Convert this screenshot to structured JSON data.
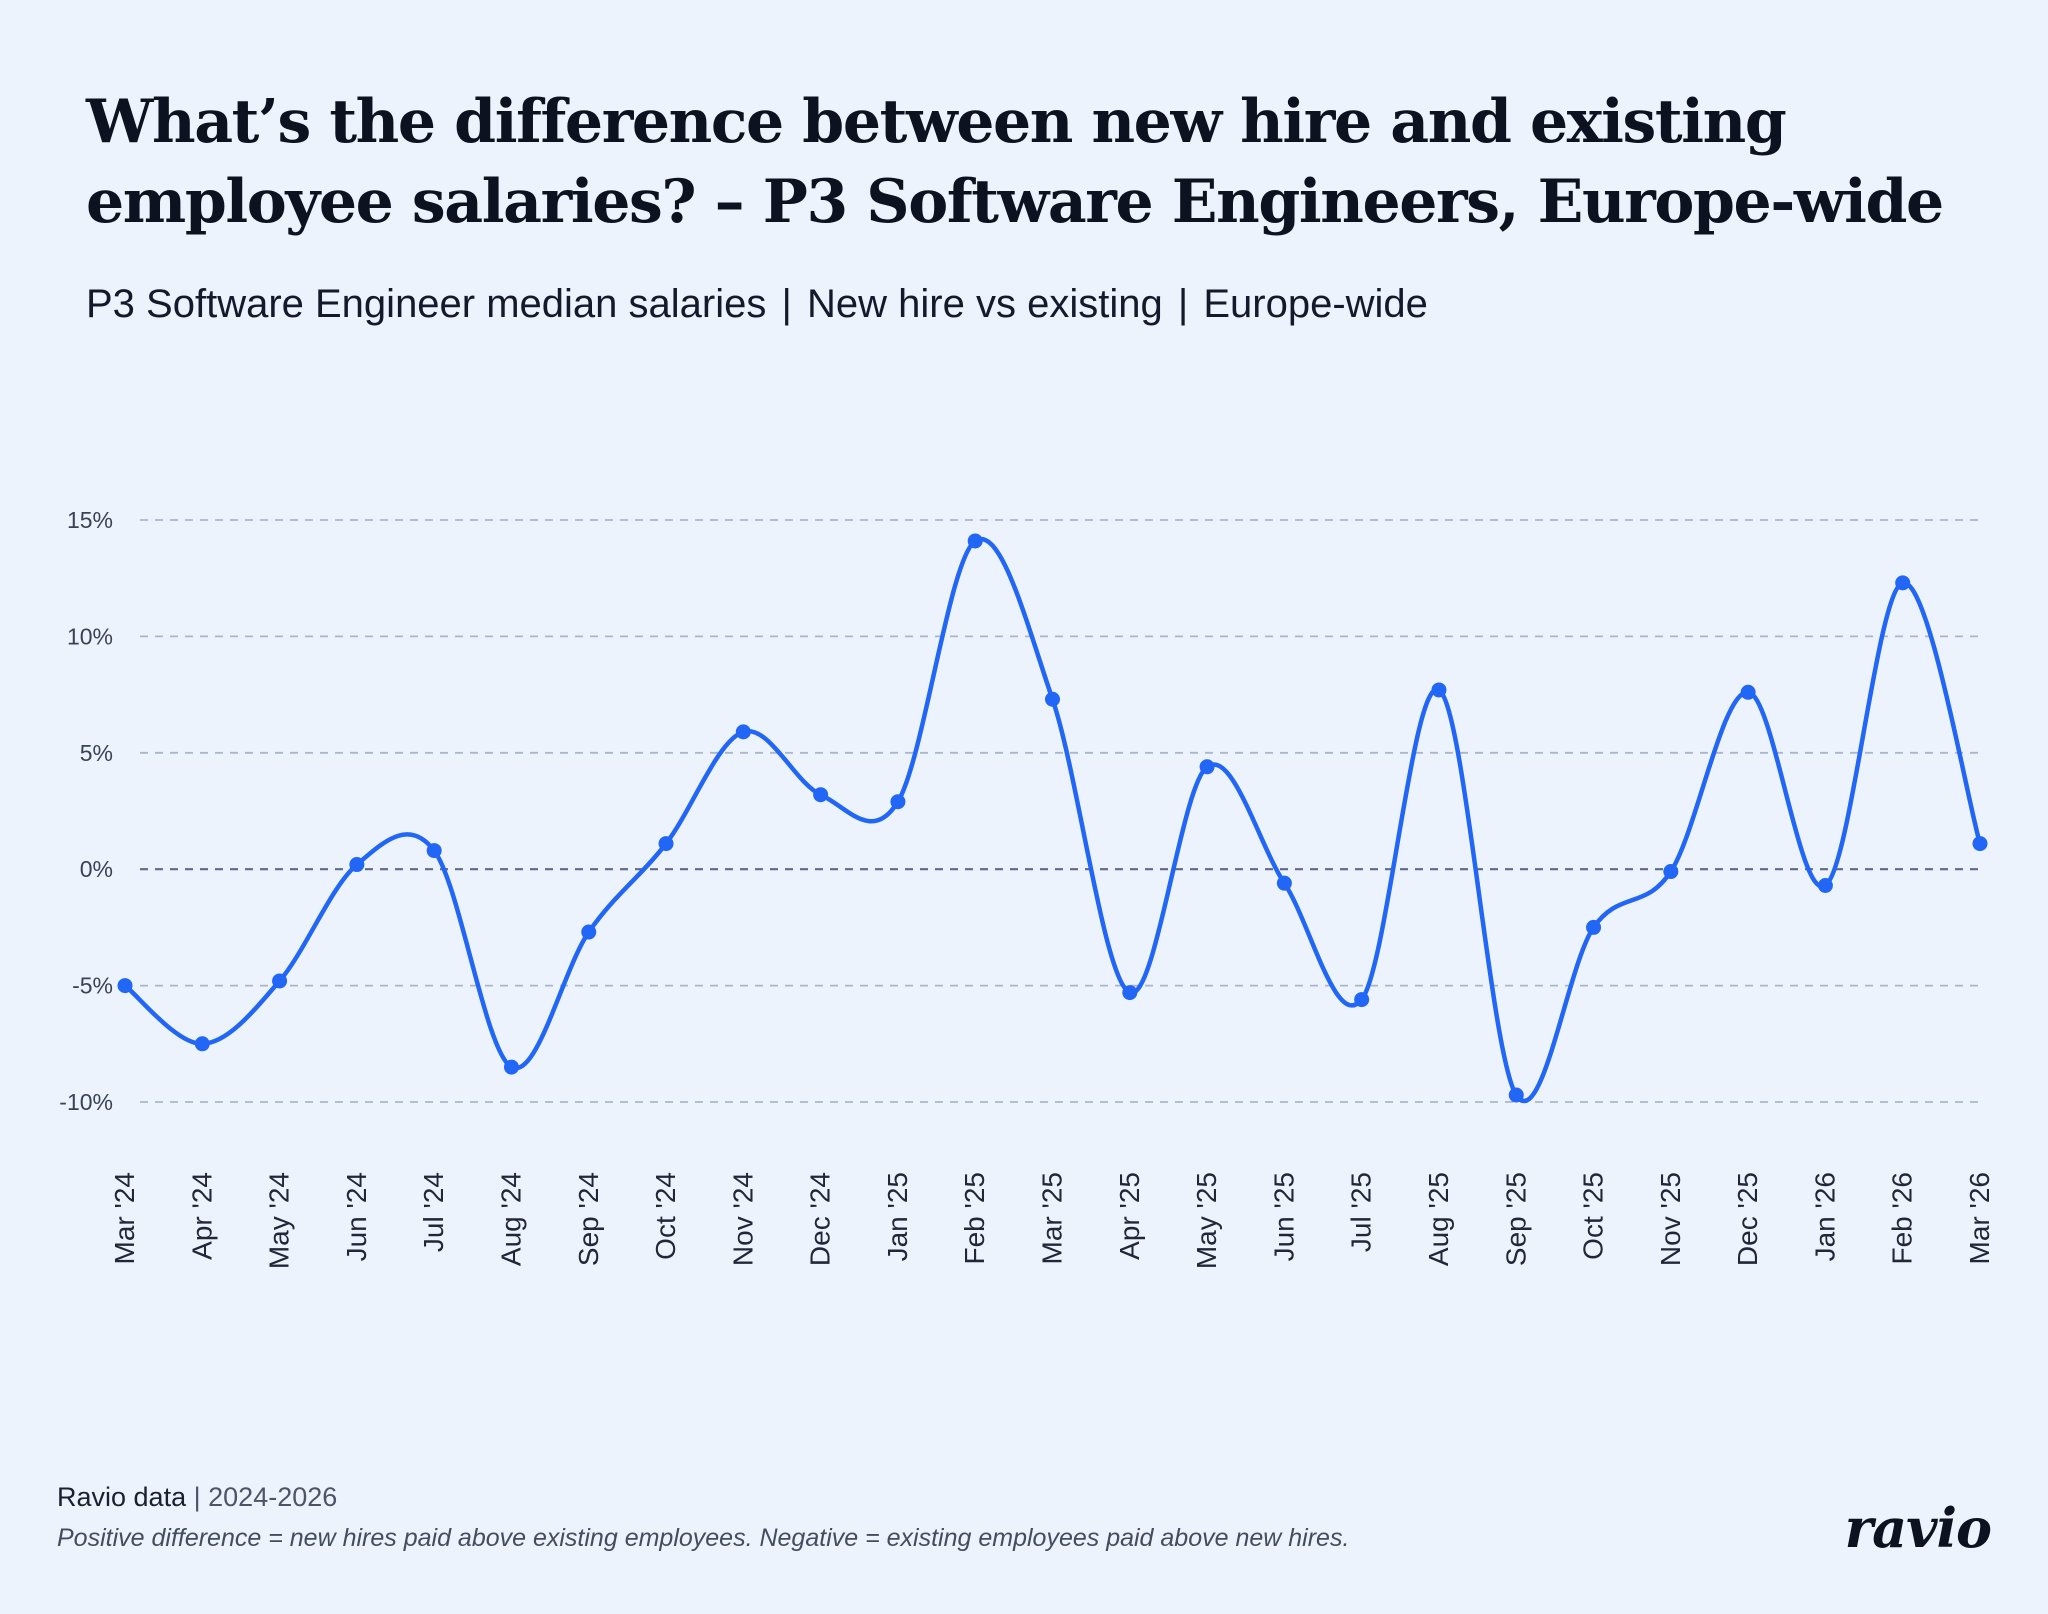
{
  "header": {
    "title": "What’s the difference between new hire and existing employee salaries? – P3 Software Engineers, Europe-wide",
    "subtitle_parts": [
      "P3 Software Engineer median salaries",
      "New hire vs existing",
      "Europe-wide"
    ],
    "subtitle_separator": "|"
  },
  "footer": {
    "source_name": "Ravio data",
    "source_separator": "|",
    "source_years": "2024-2026",
    "note": "Positive difference = new hires paid above existing employees. Negative = existing employees paid above new hires.",
    "logo_text": "ravio"
  },
  "colors": {
    "background": "#edf3fd",
    "line": "#2266f5",
    "grid": "#aab6cc",
    "zero_line": "#5f6a86",
    "text": "#0d1220"
  },
  "chart_data": {
    "type": "line",
    "title": "What’s the difference between new hire and existing employee salaries? – P3 Software Engineers, Europe-wide",
    "subtitle": "P3 Software Engineer median salaries | New hire vs existing | Europe-wide",
    "xlabel": "",
    "ylabel": "",
    "ylim": [
      -10,
      15
    ],
    "yticks": [
      15,
      10,
      5,
      0,
      -5,
      -10
    ],
    "ytick_labels": [
      "15%",
      "10%",
      "5%",
      "0%",
      "-5%",
      "-10%"
    ],
    "grid": true,
    "grid_style": "dashed horizontal",
    "categories": [
      "Mar '24",
      "Apr '24",
      "May '24",
      "Jun '24",
      "Jul '24",
      "Aug '24",
      "Sep '24",
      "Oct '24",
      "Nov '24",
      "Dec '24",
      "Jan '25",
      "Feb '25",
      "Mar '25",
      "Apr '25",
      "May '25",
      "Jun '25",
      "Jul '25",
      "Aug '25",
      "Sep '25",
      "Oct '25",
      "Nov '25",
      "Dec '25",
      "Jan '26",
      "Feb '26",
      "Mar '26"
    ],
    "series": [
      {
        "values": [
          -5.0,
          -7.5,
          -4.8,
          0.2,
          0.8,
          -8.5,
          -2.7,
          1.1,
          5.9,
          3.2,
          2.9,
          14.1,
          7.3,
          -5.3,
          4.4,
          -0.6,
          -5.6,
          7.7,
          -9.7,
          -2.5,
          -0.1,
          7.6,
          -0.7,
          12.3,
          1.1
        ]
      }
    ]
  }
}
